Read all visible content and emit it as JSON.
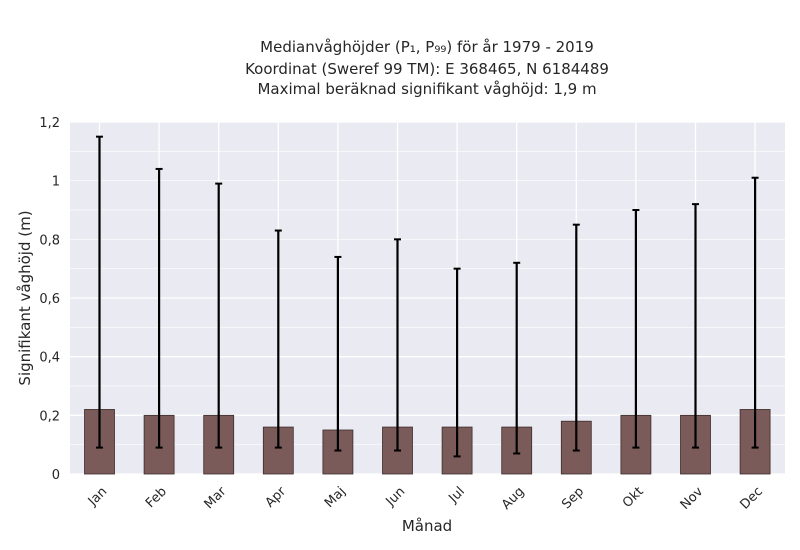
{
  "chart_data": {
    "type": "bar",
    "title_lines": [
      "Medianvåghöjder (P₁, P₉₉) för år 1979 - 2019",
      "Koordinat (Sweref 99 TM): E 368465, N 6184489",
      "Maximal beräknad signifikant våghöjd: 1,9 m"
    ],
    "xlabel": "Månad",
    "ylabel": "Signifikant våghöjd (m)",
    "categories": [
      "Jan",
      "Feb",
      "Mar",
      "Apr",
      "Maj",
      "Jun",
      "Jul",
      "Aug",
      "Sep",
      "Okt",
      "Nov",
      "Dec"
    ],
    "values": [
      0.22,
      0.2,
      0.2,
      0.16,
      0.15,
      0.16,
      0.16,
      0.16,
      0.18,
      0.2,
      0.2,
      0.22
    ],
    "error_low": [
      0.09,
      0.09,
      0.09,
      0.09,
      0.08,
      0.08,
      0.06,
      0.07,
      0.08,
      0.09,
      0.09,
      0.09
    ],
    "error_high": [
      1.15,
      1.04,
      0.99,
      0.83,
      0.74,
      0.8,
      0.7,
      0.72,
      0.85,
      0.9,
      0.92,
      1.01
    ],
    "ylim": [
      0,
      1.2
    ],
    "yticks": [
      0,
      0.2,
      0.4,
      0.6,
      0.8,
      1.0,
      1.2
    ],
    "ytick_labels": [
      "0",
      "0,2",
      "0,4",
      "0,6",
      "0,8",
      "1",
      "1,2"
    ],
    "grid": true,
    "legend": "none",
    "colors": {
      "bar": "#7b5a5a",
      "bar_edge": "#3d2c2c",
      "plot_bg": "#eaeaf2",
      "grid": "#ffffff",
      "error": "#000000"
    }
  }
}
